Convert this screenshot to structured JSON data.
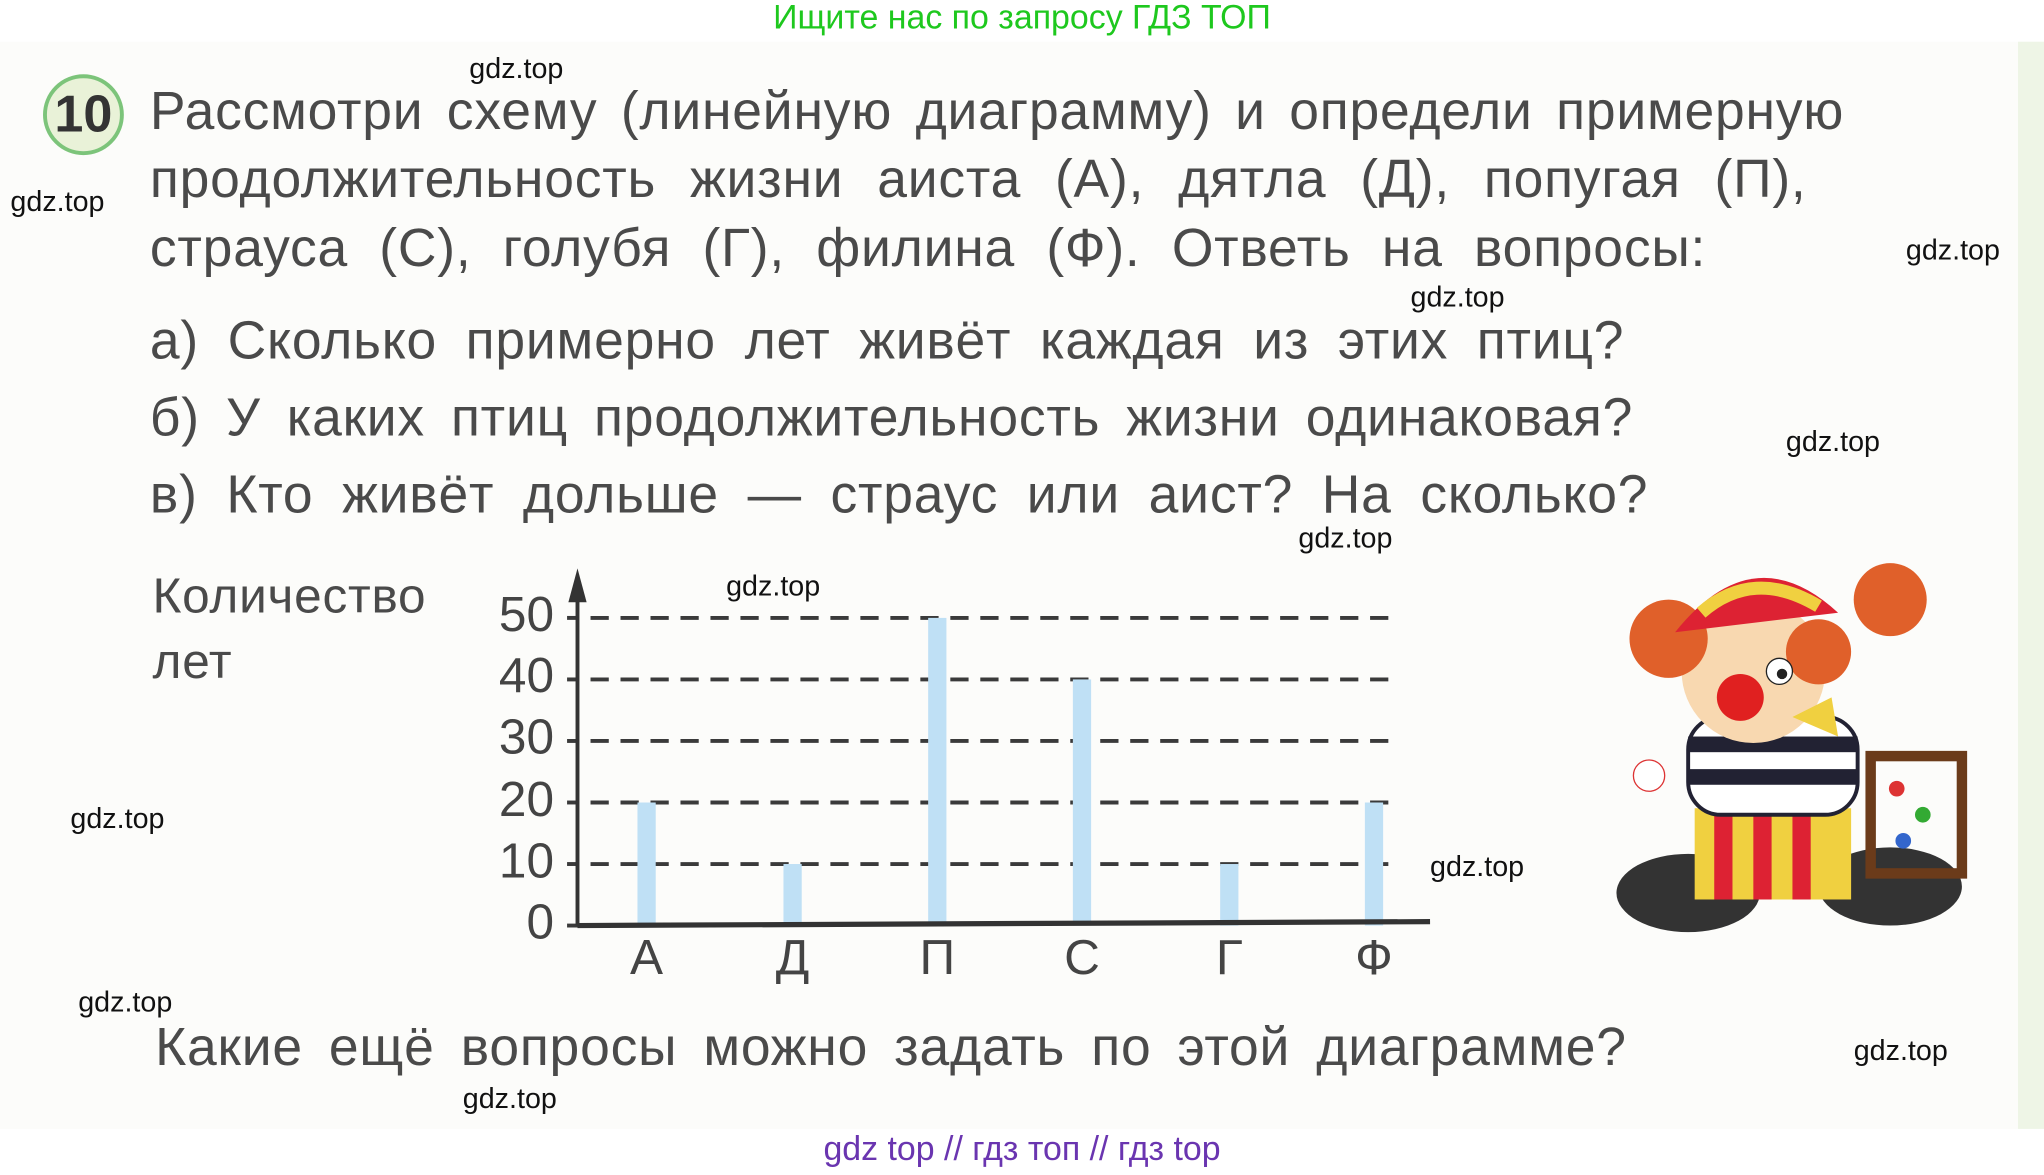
{
  "banner": "Ищите нас по запросу ГДЗ ТОП",
  "task_number": "10",
  "task_lines": [
    "Рассмотри схему (линейную диаграмму) и определи примерную",
    "продолжительность жизни аиста (А), дятла (Д), попугая (П),",
    "страуса (С), голубя (Г), филина (Ф). Ответь на вопросы:"
  ],
  "questions": [
    "а) Сколько примерно лет живёт каждая из этих птиц?",
    "б) У каких птиц продолжительность жизни одинаковая?",
    "в) Кто живёт дольше — страус или аист?  На сколько?"
  ],
  "final_question": "Какие ещё вопросы можно задать по этой диаграмме?",
  "watermark": "gdz.top",
  "footer": "gdz top  //  гдз топ  //  гдз top",
  "chart_data": {
    "type": "bar",
    "ylabel_lines": [
      "Количество",
      "лет"
    ],
    "categories": [
      "А",
      "Д",
      "П",
      "С",
      "Г",
      "Ф"
    ],
    "values": [
      20,
      10,
      50,
      40,
      10,
      20
    ],
    "yticks": [
      "0",
      "10",
      "20",
      "30",
      "40",
      "50"
    ],
    "ylim": [
      0,
      50
    ],
    "grid": "dashed horizontal",
    "bar_color": "#bfe0f5"
  },
  "colors": {
    "banner": "#1ec81e",
    "footer": "#6a35b0",
    "text": "#4a4a4a"
  }
}
